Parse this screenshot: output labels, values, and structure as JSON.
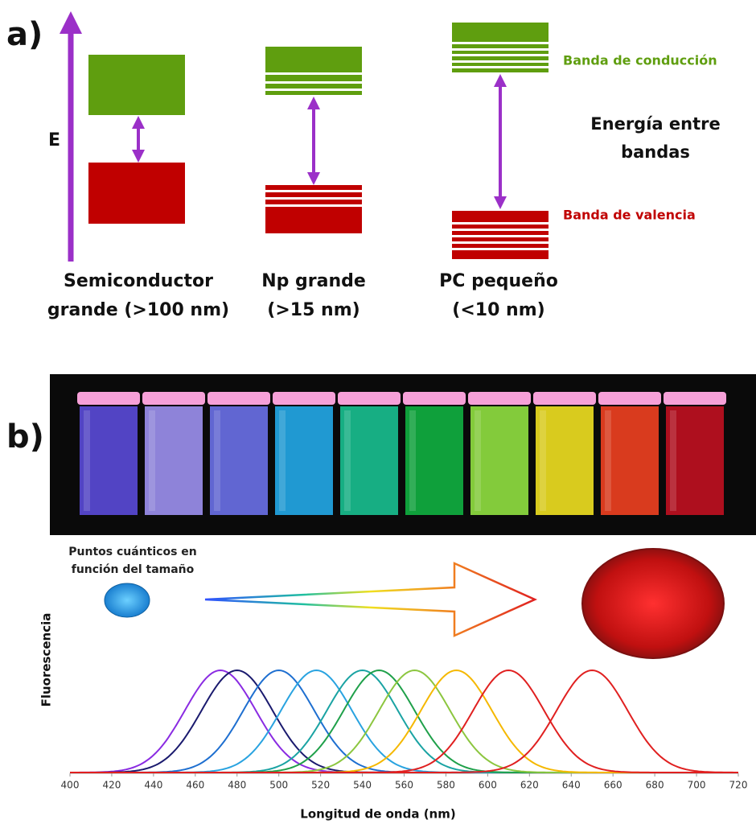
{
  "panel_a": {
    "label": "a)",
    "energy_label": "E",
    "columns": [
      {
        "title_lines": [
          "Semiconductor",
          "grande (>100 nm)"
        ]
      },
      {
        "title_lines": [
          "Np grande",
          "(>15 nm)"
        ]
      },
      {
        "title_lines": [
          "PC pequeño",
          "(<10 nm)"
        ]
      }
    ],
    "conduction_label": "Banda de conducción",
    "gap_label_lines": [
      "Energía entre",
      "bandas"
    ],
    "valence_label": "Banda de valencia"
  },
  "panel_b": {
    "label": "b)",
    "size_caption_lines": [
      "Puntos cuánticos en",
      "función del tamaño"
    ],
    "spectra": {
      "type": "line",
      "x_label": "Longitud de onda (nm)",
      "y_label": "Fluorescencia",
      "xlim": [
        400,
        720
      ],
      "xticks": [
        400,
        420,
        440,
        460,
        480,
        500,
        520,
        540,
        560,
        580,
        600,
        620,
        640,
        660,
        680,
        700,
        720
      ],
      "series": [
        {
          "color": "#8a2be2",
          "peak": 472
        },
        {
          "color": "#1a1a6e",
          "peak": 480
        },
        {
          "color": "#1e6fd0",
          "peak": 500
        },
        {
          "color": "#29a3e0",
          "peak": 518
        },
        {
          "color": "#1aa3a3",
          "peak": 540
        },
        {
          "color": "#1fa04a",
          "peak": 548
        },
        {
          "color": "#8cc63f",
          "peak": 565
        },
        {
          "color": "#f5b800",
          "peak": 585
        },
        {
          "color": "#e02020",
          "peak": 610
        },
        {
          "color": "#e02020",
          "peak": 650
        }
      ]
    }
  }
}
